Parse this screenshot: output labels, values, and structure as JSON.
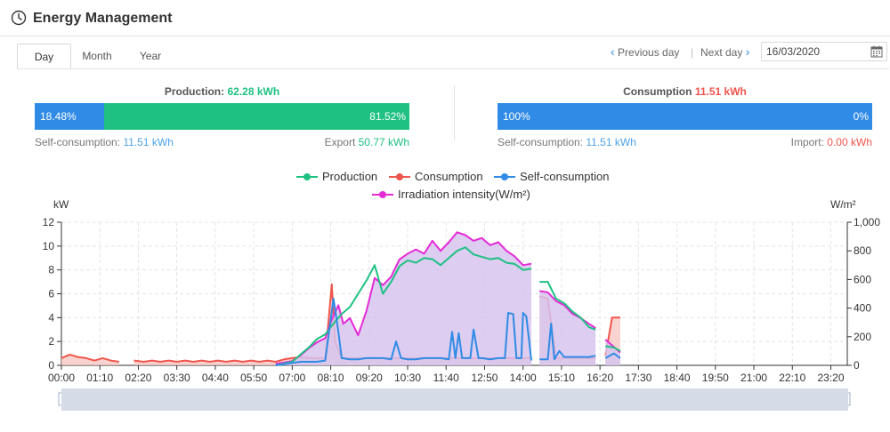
{
  "header": {
    "title": "Energy Management",
    "icon": "clock-icon"
  },
  "tabs": [
    {
      "label": "Day",
      "active": true
    },
    {
      "label": "Month",
      "active": false
    },
    {
      "label": "Year",
      "active": false
    }
  ],
  "nav": {
    "previous_label": "Previous day",
    "next_label": "Next day",
    "separator": "|",
    "date_value": "16/03/2020"
  },
  "production": {
    "label": "Production:",
    "value": "62.28 kWh",
    "self_pct": "18.48%",
    "export_pct": "81.52%",
    "self_fraction": 0.1848,
    "self_label": "Self-consumption:",
    "self_value": "11.51 kWh",
    "export_label": "Export",
    "export_value": "50.77 kWh"
  },
  "consumption": {
    "label": "Consumption",
    "value": "11.51 kWh",
    "self_pct": "100%",
    "import_pct": "0%",
    "self_fraction": 1.0,
    "self_label": "Self-consumption:",
    "self_value": "11.51 kWh",
    "import_label": "Import:",
    "import_value": "0.00 kWh"
  },
  "colors": {
    "production": "#1ec182",
    "consumption": "#f0554c",
    "self": "#2f8be6",
    "irradiation": "#e52bd6",
    "fill": "#d6c4ef"
  },
  "chart_data": {
    "type": "line",
    "ylabel_left": "kW",
    "ylabel_right": "W/m²",
    "ylim_left": [
      0,
      12
    ],
    "ylim_right": [
      0,
      1000
    ],
    "yticks_left": [
      "0",
      "2",
      "4",
      "6",
      "8",
      "10",
      "12"
    ],
    "yticks_right": [
      "0",
      "200",
      "400",
      "600",
      "800",
      "1,000"
    ],
    "xticks": [
      "00:00",
      "01:10",
      "02:20",
      "03:30",
      "04:40",
      "05:50",
      "07:00",
      "08:10",
      "09:20",
      "10:30",
      "11:40",
      "12:50",
      "14:00",
      "15:10",
      "16:20",
      "17:30",
      "18:40",
      "19:50",
      "21:00",
      "22:10",
      "23:20"
    ],
    "grid": true,
    "legend_position": "top",
    "series": [
      {
        "name": "Production",
        "axis": "left",
        "points": [
          [
            6.5,
            0
          ],
          [
            7.0,
            0.3
          ],
          [
            7.25,
            0.9
          ],
          [
            7.5,
            1.5
          ],
          [
            7.75,
            2.2
          ],
          [
            8.0,
            2.6
          ],
          [
            8.25,
            3.5
          ],
          [
            8.5,
            4.3
          ],
          [
            8.75,
            4.9
          ],
          [
            9.0,
            6.0
          ],
          [
            9.25,
            7.1
          ],
          [
            9.5,
            8.4
          ],
          [
            9.75,
            6.0
          ],
          [
            10.0,
            7.0
          ],
          [
            10.25,
            8.3
          ],
          [
            10.5,
            8.8
          ],
          [
            10.75,
            8.6
          ],
          [
            11.0,
            9.0
          ],
          [
            11.25,
            8.9
          ],
          [
            11.5,
            8.4
          ],
          [
            11.75,
            9.0
          ],
          [
            12.0,
            9.6
          ],
          [
            12.25,
            9.9
          ],
          [
            12.5,
            9.3
          ],
          [
            12.75,
            9.1
          ],
          [
            13.0,
            8.9
          ],
          [
            13.25,
            9.0
          ],
          [
            13.5,
            8.6
          ],
          [
            13.75,
            8.5
          ],
          [
            14.0,
            8.0
          ],
          [
            14.25,
            8.1
          ],
          [
            14.38,
            null
          ],
          [
            14.5,
            7.0
          ],
          [
            14.75,
            7.0
          ],
          [
            15.0,
            5.6
          ],
          [
            15.25,
            5.2
          ],
          [
            15.5,
            4.5
          ],
          [
            15.75,
            4.0
          ],
          [
            16.0,
            3.2
          ],
          [
            16.2,
            3.0
          ],
          [
            16.3,
            null
          ],
          [
            16.5,
            1.6
          ],
          [
            16.75,
            1.5
          ],
          [
            16.95,
            1.2
          ]
        ]
      },
      {
        "name": "Consumption",
        "axis": "left",
        "points": [
          [
            0.0,
            0.6
          ],
          [
            0.25,
            0.9
          ],
          [
            0.5,
            0.7
          ],
          [
            0.75,
            0.6
          ],
          [
            1.0,
            0.4
          ],
          [
            1.25,
            0.6
          ],
          [
            1.5,
            0.4
          ],
          [
            1.75,
            0.3
          ],
          [
            1.85,
            null
          ],
          [
            2.2,
            0.4
          ],
          [
            2.5,
            0.3
          ],
          [
            2.75,
            0.4
          ],
          [
            3.0,
            0.3
          ],
          [
            3.25,
            0.4
          ],
          [
            3.5,
            0.3
          ],
          [
            3.75,
            0.4
          ],
          [
            4.0,
            0.3
          ],
          [
            4.25,
            0.4
          ],
          [
            4.5,
            0.3
          ],
          [
            4.75,
            0.4
          ],
          [
            5.0,
            0.3
          ],
          [
            5.25,
            0.4
          ],
          [
            5.5,
            0.3
          ],
          [
            5.75,
            0.4
          ],
          [
            6.0,
            0.3
          ],
          [
            6.25,
            0.4
          ],
          [
            6.5,
            0.3
          ],
          [
            6.75,
            0.5
          ],
          [
            7.0,
            0.6
          ],
          [
            7.25,
            0.7
          ],
          [
            7.5,
            0.6
          ],
          [
            7.75,
            0.6
          ],
          [
            8.0,
            0.6
          ],
          [
            8.2,
            6.8
          ],
          [
            8.3,
            2.0
          ],
          [
            8.5,
            0.6
          ],
          [
            8.75,
            0.6
          ],
          [
            9.0,
            0.6
          ],
          [
            9.25,
            0.6
          ],
          [
            9.5,
            0.6
          ],
          [
            9.75,
            0.6
          ],
          [
            10.0,
            0.6
          ],
          [
            10.25,
            0.6
          ],
          [
            10.5,
            0.6
          ],
          [
            10.75,
            0.6
          ],
          [
            11.0,
            0.6
          ],
          [
            11.25,
            0.6
          ],
          [
            11.5,
            0.6
          ],
          [
            11.75,
            0.6
          ],
          [
            12.0,
            0.6
          ],
          [
            12.25,
            0.6
          ],
          [
            12.5,
            0.6
          ],
          [
            12.75,
            0.6
          ],
          [
            13.0,
            0.6
          ],
          [
            13.25,
            0.6
          ],
          [
            13.5,
            0.6
          ],
          [
            13.75,
            0.6
          ],
          [
            14.0,
            0.6
          ],
          [
            14.25,
            0.6
          ],
          [
            14.38,
            null
          ],
          [
            14.5,
            5.8
          ],
          [
            14.75,
            5.6
          ],
          [
            15.0,
            0.6
          ],
          [
            15.25,
            0.6
          ],
          [
            15.5,
            0.6
          ],
          [
            15.75,
            0.6
          ],
          [
            16.0,
            0.6
          ],
          [
            16.2,
            0.6
          ],
          [
            16.3,
            null
          ],
          [
            16.5,
            0.8
          ],
          [
            16.7,
            4.0
          ],
          [
            16.95,
            4.0
          ]
        ]
      },
      {
        "name": "Self-consumption",
        "axis": "left",
        "points": [
          [
            6.5,
            0
          ],
          [
            6.75,
            0.1
          ],
          [
            7.0,
            0.2
          ],
          [
            7.25,
            0.3
          ],
          [
            7.5,
            0.3
          ],
          [
            7.75,
            0.3
          ],
          [
            8.0,
            0.4
          ],
          [
            8.25,
            5.6
          ],
          [
            8.4,
            2.8
          ],
          [
            8.5,
            0.6
          ],
          [
            8.75,
            0.5
          ],
          [
            9.0,
            0.5
          ],
          [
            9.25,
            0.6
          ],
          [
            9.5,
            0.6
          ],
          [
            9.75,
            0.6
          ],
          [
            10.0,
            0.5
          ],
          [
            10.15,
            2.0
          ],
          [
            10.3,
            0.6
          ],
          [
            10.5,
            0.5
          ],
          [
            10.75,
            0.5
          ],
          [
            11.0,
            0.6
          ],
          [
            11.25,
            0.6
          ],
          [
            11.5,
            0.6
          ],
          [
            11.75,
            0.5
          ],
          [
            11.85,
            2.8
          ],
          [
            11.95,
            0.6
          ],
          [
            12.05,
            2.7
          ],
          [
            12.15,
            0.6
          ],
          [
            12.4,
            0.6
          ],
          [
            12.5,
            3.0
          ],
          [
            12.65,
            0.6
          ],
          [
            12.75,
            0.6
          ],
          [
            13.0,
            0.5
          ],
          [
            13.25,
            0.6
          ],
          [
            13.45,
            0.6
          ],
          [
            13.55,
            4.4
          ],
          [
            13.7,
            4.3
          ],
          [
            13.8,
            0.6
          ],
          [
            13.95,
            0.6
          ],
          [
            14.0,
            4.4
          ],
          [
            14.1,
            4.1
          ],
          [
            14.25,
            0.4
          ],
          [
            14.38,
            null
          ],
          [
            14.5,
            0.5
          ],
          [
            14.75,
            0.5
          ],
          [
            14.85,
            3.5
          ],
          [
            14.95,
            0.5
          ],
          [
            15.1,
            1.2
          ],
          [
            15.25,
            0.7
          ],
          [
            15.5,
            0.7
          ],
          [
            15.75,
            0.7
          ],
          [
            16.0,
            0.7
          ],
          [
            16.2,
            0.8
          ],
          [
            16.3,
            null
          ],
          [
            16.5,
            0.6
          ],
          [
            16.75,
            1.0
          ],
          [
            16.95,
            0.6
          ]
        ]
      },
      {
        "name": "Irradiation intensity(W/m²)",
        "axis": "right",
        "points": [
          [
            6.5,
            10
          ],
          [
            7.0,
            30
          ],
          [
            7.25,
            70
          ],
          [
            7.5,
            120
          ],
          [
            7.75,
            160
          ],
          [
            8.0,
            190
          ],
          [
            8.2,
            320
          ],
          [
            8.4,
            420
          ],
          [
            8.55,
            290
          ],
          [
            8.75,
            330
          ],
          [
            9.0,
            210
          ],
          [
            9.25,
            380
          ],
          [
            9.5,
            610
          ],
          [
            9.75,
            560
          ],
          [
            10.0,
            620
          ],
          [
            10.25,
            740
          ],
          [
            10.5,
            780
          ],
          [
            10.75,
            810
          ],
          [
            11.0,
            780
          ],
          [
            11.25,
            870
          ],
          [
            11.5,
            800
          ],
          [
            11.75,
            860
          ],
          [
            12.0,
            930
          ],
          [
            12.25,
            910
          ],
          [
            12.5,
            870
          ],
          [
            12.75,
            890
          ],
          [
            13.0,
            840
          ],
          [
            13.25,
            860
          ],
          [
            13.5,
            800
          ],
          [
            13.75,
            760
          ],
          [
            14.0,
            700
          ],
          [
            14.25,
            710
          ],
          [
            14.38,
            null
          ],
          [
            14.5,
            520
          ],
          [
            14.75,
            510
          ],
          [
            15.0,
            450
          ],
          [
            15.25,
            420
          ],
          [
            15.5,
            360
          ],
          [
            15.75,
            330
          ],
          [
            16.0,
            290
          ],
          [
            16.2,
            260
          ],
          [
            16.3,
            null
          ],
          [
            16.5,
            180
          ],
          [
            16.75,
            130
          ],
          [
            16.95,
            90
          ]
        ]
      }
    ]
  }
}
